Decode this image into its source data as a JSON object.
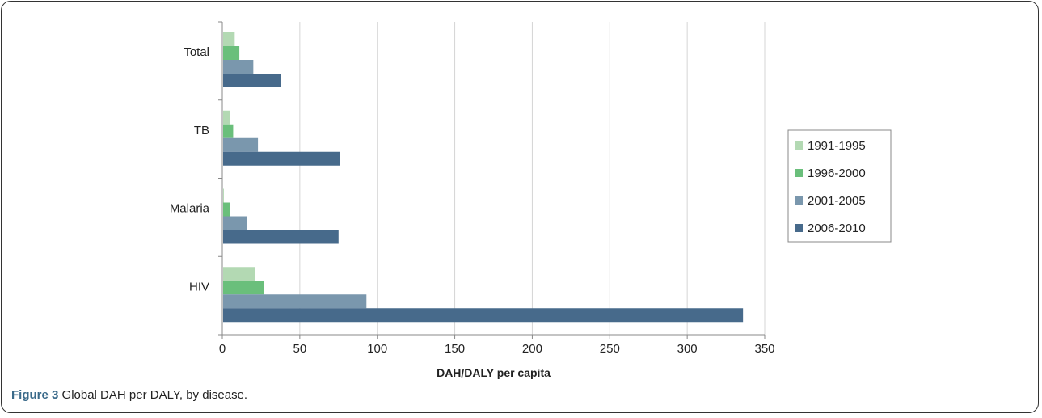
{
  "figure": {
    "caption_label": "Figure 3",
    "caption_text": " Global DAH per DALY, by disease."
  },
  "chart_data": {
    "type": "bar",
    "orientation": "horizontal",
    "categories": [
      "Total",
      "TB",
      "Malaria",
      "HIV"
    ],
    "series": [
      {
        "name": "1991-1995",
        "color": "#b3d9b3",
        "values": [
          8,
          5,
          1,
          21
        ]
      },
      {
        "name": "1996-2000",
        "color": "#6abf7b",
        "values": [
          11,
          7,
          5,
          27
        ]
      },
      {
        "name": "2001-2005",
        "color": "#7a97ad",
        "values": [
          20,
          23,
          16,
          93
        ]
      },
      {
        "name": "2006-2010",
        "color": "#476a8b",
        "values": [
          38,
          76,
          75,
          336
        ]
      }
    ],
    "xlabel": "DAH/DALY per capita",
    "ylabel": "",
    "xlim": [
      0,
      350
    ],
    "xticks": [
      0,
      50,
      100,
      150,
      200,
      250,
      300,
      350
    ],
    "grid": true,
    "legend_position": "right"
  }
}
